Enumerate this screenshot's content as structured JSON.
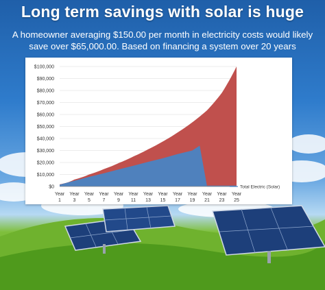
{
  "header": {
    "title": "Long term savings with solar is huge",
    "subtitle": "A homeowner averaging $150.00 per month in electricity costs would likely save over $65,000.00. Based on financing a system over 20 years"
  },
  "chart_data": {
    "type": "area",
    "title": "",
    "xlabel": "",
    "ylabel": "",
    "ylim": [
      0,
      100000
    ],
    "grid": true,
    "y_ticks": [
      "$100,000",
      "$90,000",
      "$80,000",
      "$70,000",
      "$60,000",
      "$50,000",
      "$40,000",
      "$30,000",
      "$20,000",
      "$10,000",
      "$0"
    ],
    "y_tick_values": [
      100000,
      90000,
      80000,
      70000,
      60000,
      50000,
      40000,
      30000,
      20000,
      10000,
      0
    ],
    "categories": [
      "Year 1",
      "Year 3",
      "Year 5",
      "Year 7",
      "Year 9",
      "Year 11",
      "Year 13",
      "Year 15",
      "Year 17",
      "Year 19",
      "Year 21",
      "Year 23",
      "Year 25"
    ],
    "x": [
      1,
      3,
      5,
      7,
      9,
      11,
      13,
      15,
      17,
      19,
      21,
      23,
      25
    ],
    "series": [
      {
        "name": "",
        "color": "#c0504d",
        "values": [
          1800,
          5800,
          10000,
          14500,
          19500,
          25000,
          31000,
          37500,
          45000,
          53500,
          63500,
          78000,
          100000
        ]
      },
      {
        "name": "Total Electric (Solar)",
        "color": "#4f81bd",
        "values": [
          1500,
          4800,
          8000,
          11000,
          14200,
          17300,
          20500,
          23500,
          27000,
          30000,
          0,
          0,
          0
        ],
        "points": [
          [
            1,
            1500
          ],
          [
            3,
            4800
          ],
          [
            5,
            8000
          ],
          [
            7,
            11000
          ],
          [
            9,
            14200
          ],
          [
            11,
            17300
          ],
          [
            13,
            20500
          ],
          [
            15,
            23500
          ],
          [
            17,
            27000
          ],
          [
            19,
            30000
          ],
          [
            20,
            34000
          ],
          [
            21,
            0
          ],
          [
            25,
            0
          ]
        ]
      }
    ],
    "legend": "right"
  },
  "colors": {
    "panel": "#ffffff",
    "grid": "#d9d9d9",
    "title_text": "#ffffff"
  }
}
